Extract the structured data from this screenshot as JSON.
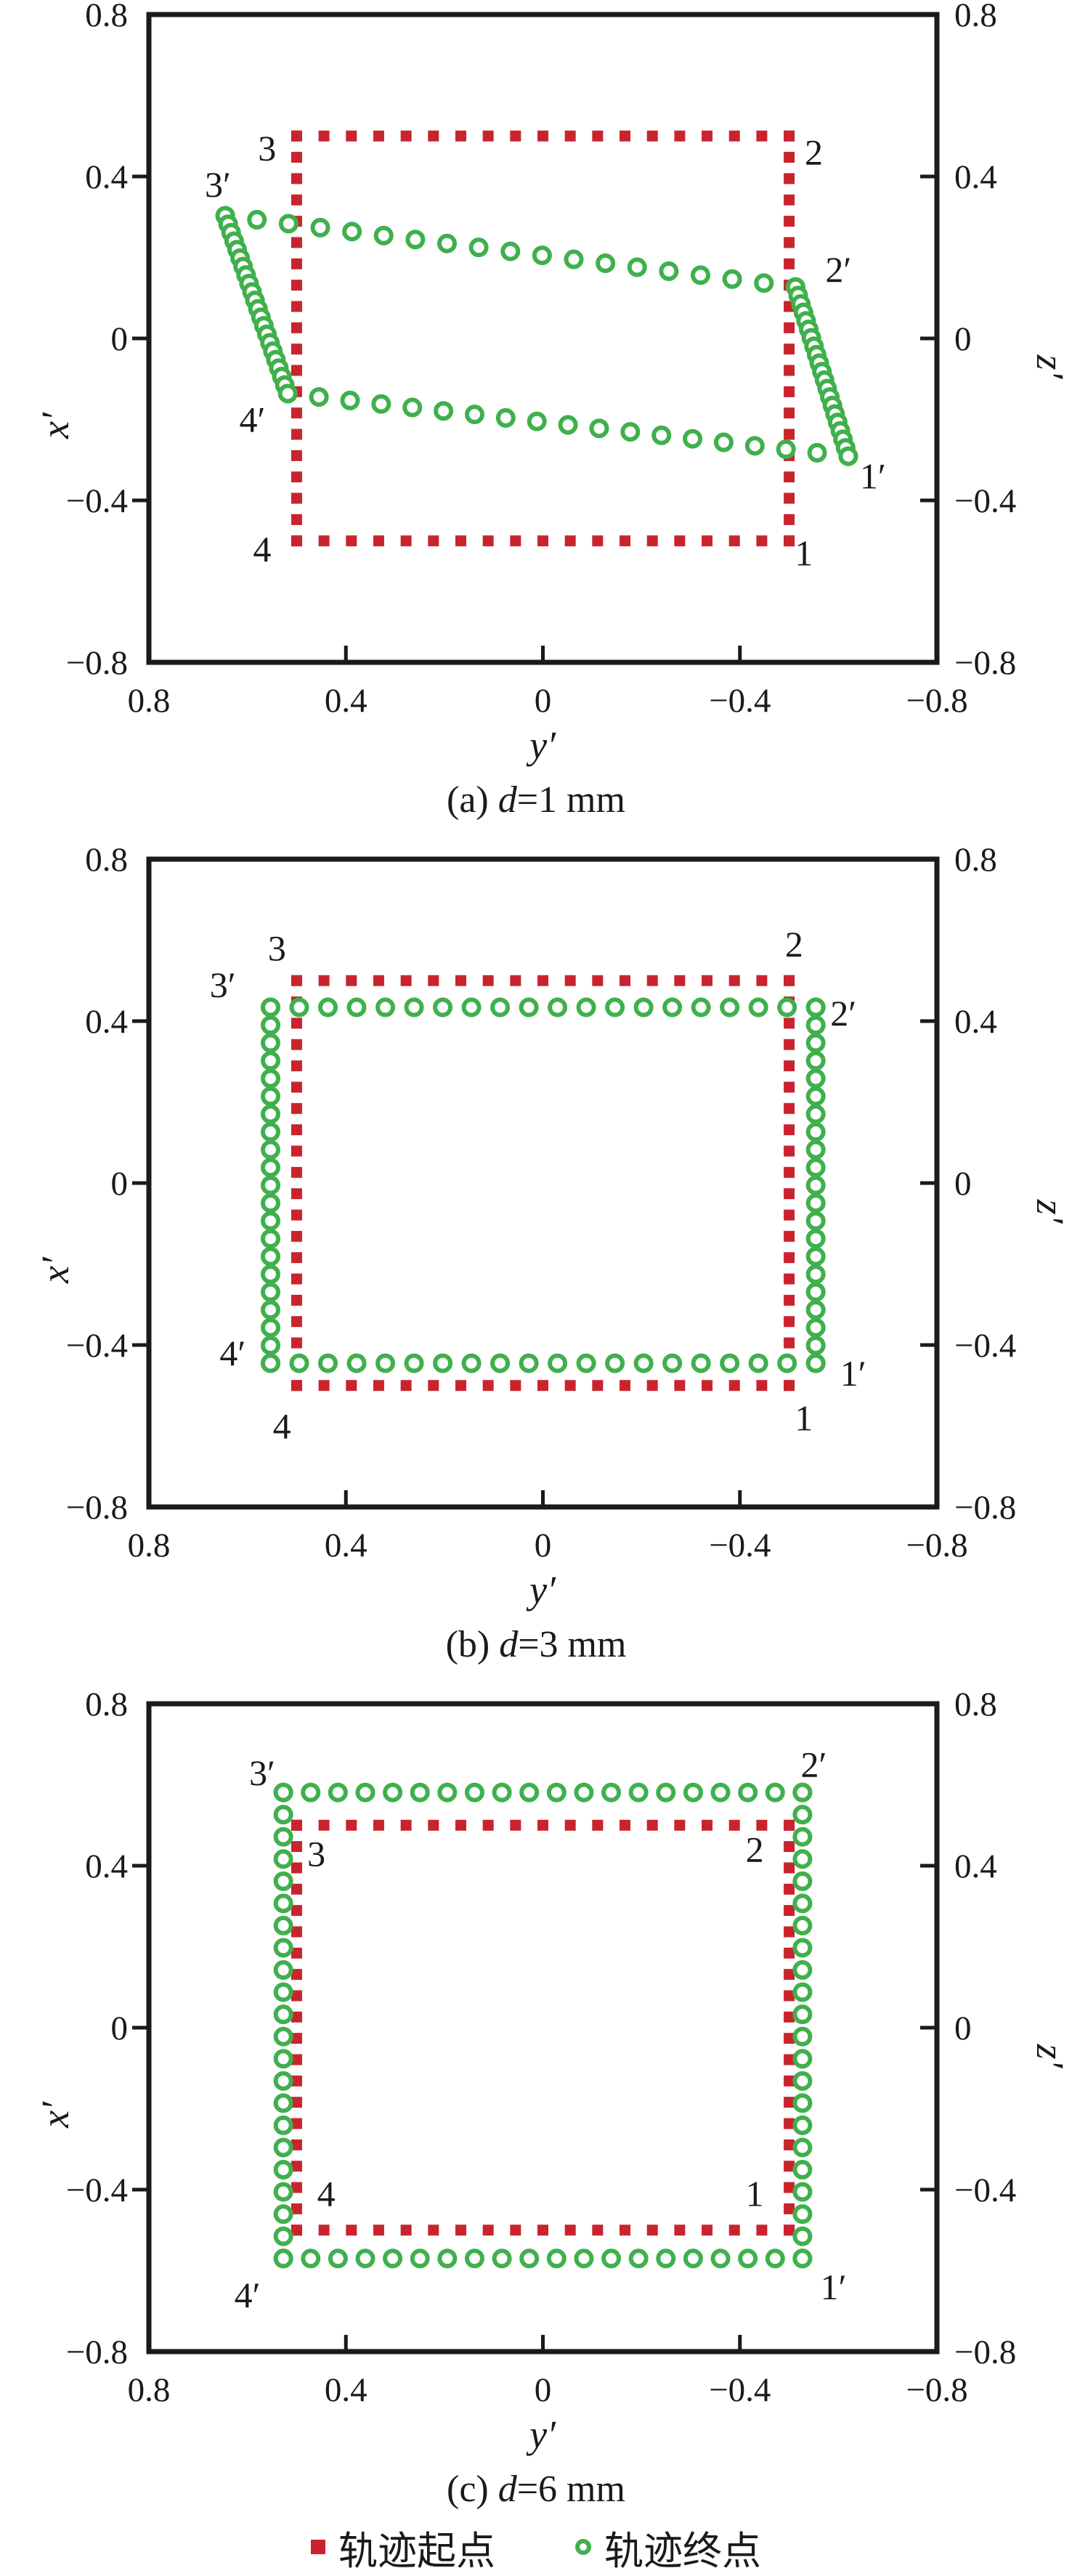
{
  "figure": {
    "colors": {
      "start": "#c9242d",
      "end": "#3fb04c",
      "axis": "#1a1a1a",
      "text": "#1a1a1a"
    },
    "legend": {
      "items": [
        {
          "marker": "filled-square",
          "label": "轨迹起点"
        },
        {
          "marker": "open-circle",
          "label": "轨迹终点"
        }
      ]
    }
  },
  "chart_data": [
    {
      "type": "scatter",
      "caption": {
        "prefix": "(a) ",
        "var": "d",
        "suffix": "=1 mm"
      },
      "axes": {
        "left_label": "x′",
        "right_label": "z′",
        "bottom_label": "y′",
        "tick_labels": [
          "0.8",
          "0.4",
          "0",
          "−0.4",
          "−0.8"
        ],
        "tick_values": [
          0.8,
          0.4,
          0,
          -0.4,
          -0.8
        ],
        "xlim": [
          0.8,
          -0.8
        ],
        "ylim": [
          -0.8,
          0.8
        ],
        "x_axis_reversed": true,
        "grid": false
      },
      "series": [
        {
          "name": "轨迹起点",
          "marker": "filled-square",
          "square": {
            "left": 0.5,
            "right": -0.5,
            "top": 0.5,
            "bottom": -0.5
          },
          "counts": {
            "h": 19,
            "v": 20
          }
        },
        {
          "name": "轨迹终点",
          "marker": "open-circle",
          "corners": {
            "p3": [
              0.645,
              0.303
            ],
            "p2": [
              -0.513,
              0.127
            ],
            "p1": [
              -0.62,
              -0.291
            ],
            "p4": [
              0.518,
              -0.136
            ]
          },
          "counts": {
            "top": 19,
            "right": 21,
            "bottom": 19,
            "left": 22
          }
        }
      ],
      "annotations": [
        {
          "text": "3",
          "y": 0.56,
          "x": 0.47
        },
        {
          "text": "3′",
          "y": 0.66,
          "x": 0.38
        },
        {
          "text": "2",
          "y": -0.55,
          "x": 0.46
        },
        {
          "text": "2′",
          "y": -0.6,
          "x": 0.17
        },
        {
          "text": "4",
          "y": 0.57,
          "x": -0.52
        },
        {
          "text": "4′",
          "y": 0.59,
          "x": -0.2
        },
        {
          "text": "1",
          "y": -0.53,
          "x": -0.53
        },
        {
          "text": "1′",
          "y": -0.67,
          "x": -0.34
        }
      ]
    },
    {
      "type": "scatter",
      "caption": {
        "prefix": "(b) ",
        "var": "d",
        "suffix": "=3 mm"
      },
      "axes": {
        "left_label": "x′",
        "right_label": "z′",
        "bottom_label": "y′",
        "tick_labels": [
          "0.8",
          "0.4",
          "0",
          "−0.4",
          "−0.8"
        ],
        "tick_values": [
          0.8,
          0.4,
          0,
          -0.4,
          -0.8
        ],
        "xlim": [
          0.8,
          -0.8
        ],
        "ylim": [
          -0.8,
          0.8
        ],
        "x_axis_reversed": true,
        "grid": false
      },
      "series": [
        {
          "name": "轨迹起点",
          "marker": "filled-square",
          "square": {
            "left": 0.5,
            "right": -0.5,
            "top": 0.5,
            "bottom": -0.5
          },
          "counts": {
            "h": 19,
            "v": 20
          }
        },
        {
          "name": "轨迹终点",
          "marker": "open-circle",
          "corners": {
            "p3": [
              0.553,
              0.434
            ],
            "p2": [
              -0.554,
              0.434
            ],
            "p1": [
              -0.554,
              -0.445
            ],
            "p4": [
              0.553,
              -0.445
            ]
          },
          "counts": {
            "top": 20,
            "right": 21,
            "bottom": 20,
            "left": 21
          }
        }
      ],
      "annotations": [
        {
          "text": "3",
          "y": 0.54,
          "x": 0.58
        },
        {
          "text": "3′",
          "y": 0.65,
          "x": 0.49
        },
        {
          "text": "2",
          "y": -0.51,
          "x": 0.59
        },
        {
          "text": "2′",
          "y": -0.61,
          "x": 0.42
        },
        {
          "text": "4",
          "y": 0.53,
          "x": -0.6
        },
        {
          "text": "4′",
          "y": 0.63,
          "x": -0.42
        },
        {
          "text": "1",
          "y": -0.53,
          "x": -0.58
        },
        {
          "text": "1′",
          "y": -0.63,
          "x": -0.47
        }
      ]
    },
    {
      "type": "scatter",
      "caption": {
        "prefix": "(c) ",
        "var": "d",
        "suffix": "=6 mm"
      },
      "axes": {
        "left_label": "x′",
        "right_label": "z′",
        "bottom_label": "y′",
        "tick_labels": [
          "0.8",
          "0.4",
          "0",
          "−0.4",
          "−0.8"
        ],
        "tick_values": [
          0.8,
          0.4,
          0,
          -0.4,
          -0.8
        ],
        "xlim": [
          0.8,
          -0.8
        ],
        "ylim": [
          -0.8,
          0.8
        ],
        "x_axis_reversed": true,
        "grid": false
      },
      "series": [
        {
          "name": "轨迹起点",
          "marker": "filled-square",
          "square": {
            "left": 0.5,
            "right": -0.5,
            "top": 0.5,
            "bottom": -0.5
          },
          "counts": {
            "h": 19,
            "v": 20
          }
        },
        {
          "name": "轨迹终点",
          "marker": "open-circle",
          "corners": {
            "p3": [
              0.527,
              0.581
            ],
            "p2": [
              -0.527,
              0.581
            ],
            "p1": [
              -0.527,
              -0.57
            ],
            "p4": [
              0.527,
              -0.57
            ]
          },
          "counts": {
            "top": 20,
            "right": 22,
            "bottom": 20,
            "left": 22
          }
        }
      ],
      "annotations": [
        {
          "text": "3′",
          "y": 0.57,
          "x": 0.63
        },
        {
          "text": "3",
          "y": 0.46,
          "x": 0.43
        },
        {
          "text": "2′",
          "y": -0.55,
          "x": 0.65
        },
        {
          "text": "2",
          "y": -0.43,
          "x": 0.44
        },
        {
          "text": "4",
          "y": 0.44,
          "x": -0.41
        },
        {
          "text": "4′",
          "y": 0.6,
          "x": -0.66
        },
        {
          "text": "1",
          "y": -0.43,
          "x": -0.41
        },
        {
          "text": "1′",
          "y": -0.59,
          "x": -0.64
        }
      ]
    }
  ]
}
